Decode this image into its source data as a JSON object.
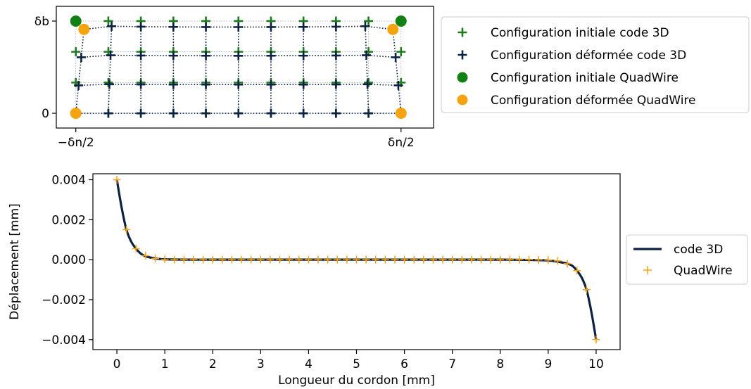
{
  "colors": {
    "initial_3d": "#1f7a1f",
    "deformed_3d": "#0d2240",
    "initial_quadwire": "#138013",
    "deformed_quadwire": "#f5a30e",
    "code3d_line": "#0d2240",
    "quadwire_marker": "#f5a30e",
    "grid_initial": "#9aa0a6"
  },
  "chart_data": [
    {
      "type": "scatter",
      "title": "",
      "xlabel": "",
      "ylabel": "",
      "x_ticks": [
        {
          "value": 0,
          "label": "−δn/2"
        },
        {
          "value": 1,
          "label": "δn/2"
        }
      ],
      "y_ticks": [
        {
          "value": 0,
          "label": "0"
        },
        {
          "value": 1,
          "label": "δb"
        }
      ],
      "xlim": [
        -0.06,
        1.1
      ],
      "ylim": [
        -0.16,
        1.16
      ],
      "grid_x": [
        0,
        0.1,
        0.2,
        0.3,
        0.4,
        0.5,
        0.6,
        0.7,
        0.8,
        0.9,
        1.0
      ],
      "grid_y": [
        0,
        0.333,
        0.667,
        1.0
      ],
      "series": [
        {
          "name": "Configuration initiale code 3D",
          "marker": "plus",
          "note_grid": "initial"
        },
        {
          "name": "Configuration déformée code 3D",
          "marker": "plus",
          "note_grid": "deformed"
        },
        {
          "name": "Configuration initiale QuadWire",
          "marker": "circle",
          "points": [
            [
              0,
              1
            ],
            [
              1,
              1
            ]
          ]
        },
        {
          "name": "Configuration déformée QuadWire",
          "marker": "circle",
          "points": [
            [
              0,
              0
            ],
            [
              1,
              0
            ],
            [
              0.025,
              0.91
            ],
            [
              0.975,
              0.91
            ]
          ]
        }
      ],
      "legend": "right"
    },
    {
      "type": "line",
      "title": "",
      "xlabel": "Longueur du cordon [mm]",
      "ylabel": "Déplacement [mm]",
      "xlim": [
        -0.5,
        10.5
      ],
      "ylim": [
        -0.0045,
        0.0043
      ],
      "x_ticks": [
        0,
        1,
        2,
        3,
        4,
        5,
        6,
        7,
        8,
        9,
        10
      ],
      "y_ticks": [
        {
          "value": 0.004,
          "label": "0.004"
        },
        {
          "value": 0.002,
          "label": "0.002"
        },
        {
          "value": 0.0,
          "label": "0.000"
        },
        {
          "value": -0.002,
          "label": "−0.002"
        },
        {
          "value": -0.004,
          "label": "−0.004"
        }
      ],
      "series": [
        {
          "name": "code 3D",
          "style": "line",
          "x": [
            0,
            0.1,
            0.2,
            0.3,
            0.4,
            0.5,
            0.6,
            0.8,
            1.0,
            1.5,
            2,
            3,
            4,
            5,
            6,
            7,
            8,
            8.5,
            9.0,
            9.2,
            9.4,
            9.5,
            9.6,
            9.7,
            9.8,
            9.9,
            10
          ],
          "values": [
            0.004,
            0.0026,
            0.0015,
            0.0009,
            0.00055,
            0.0003,
            0.00017,
            6e-05,
            2e-05,
            0,
            0,
            0,
            0,
            0,
            0,
            0,
            0,
            -1e-05,
            -4e-05,
            -0.0001,
            -0.0002,
            -0.0003,
            -0.00055,
            -0.0009,
            -0.0015,
            -0.0026,
            -0.004
          ]
        },
        {
          "name": "QuadWire",
          "style": "plus",
          "x": [
            0,
            0.2,
            0.4,
            0.6,
            0.8,
            1.0,
            1.2,
            1.4,
            1.6,
            1.8,
            2.0,
            2.2,
            2.4,
            2.6,
            2.8,
            3.0,
            3.2,
            3.4,
            3.6,
            3.8,
            4.0,
            4.2,
            4.4,
            4.6,
            4.8,
            5.0,
            5.2,
            5.4,
            5.6,
            5.8,
            6.0,
            6.2,
            6.4,
            6.6,
            6.8,
            7.0,
            7.2,
            7.4,
            7.6,
            7.8,
            8.0,
            8.2,
            8.4,
            8.6,
            8.8,
            9.0,
            9.2,
            9.4,
            9.6,
            9.8,
            10.0
          ],
          "values": [
            0.004,
            0.0015,
            0.00055,
            0.0002,
            6e-05,
            2e-05,
            0,
            0,
            0,
            0,
            0,
            0,
            0,
            0,
            0,
            0,
            0,
            0,
            0,
            0,
            0,
            0,
            0,
            0,
            0,
            0,
            0,
            0,
            0,
            0,
            0,
            0,
            0,
            0,
            0,
            0,
            0,
            0,
            0,
            0,
            0,
            0,
            0,
            0,
            -1e-05,
            -2e-05,
            -6e-05,
            -0.0002,
            -0.00055,
            -0.0015,
            -0.004
          ]
        }
      ],
      "legend": "right"
    }
  ]
}
